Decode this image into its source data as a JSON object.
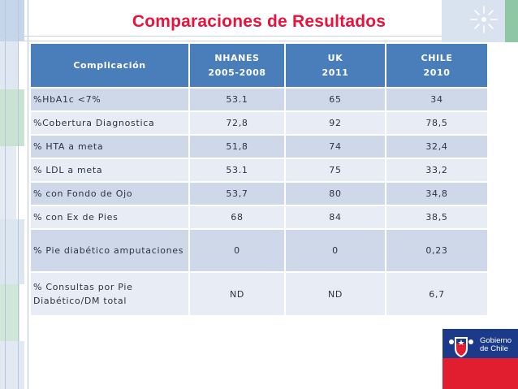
{
  "slide": {
    "title": "Comparaciones de Resultados"
  },
  "table": {
    "headers": [
      {
        "line1": "Complicación",
        "line2": ""
      },
      {
        "line1": "NHANES",
        "line2": "2005-2008"
      },
      {
        "line1": "UK",
        "line2": "2011"
      },
      {
        "line1": "CHILE",
        "line2": "2010"
      }
    ],
    "rows": [
      {
        "label": "%HbA1c <7%",
        "nhanes": "53.1",
        "uk": "65",
        "chile": "34"
      },
      {
        "label": "%Cobertura Diagnostica",
        "nhanes": "72,8",
        "uk": "92",
        "chile": "78,5"
      },
      {
        "label": "% HTA a meta",
        "nhanes": "51,8",
        "uk": "74",
        "chile": "32,4"
      },
      {
        "label": "% LDL a meta",
        "nhanes": "53.1",
        "uk": "75",
        "chile": "33,2"
      },
      {
        "label": "% con Fondo de Ojo",
        "nhanes": "53,7",
        "uk": "80",
        "chile": "34,8"
      },
      {
        "label": "% con Ex de Pies",
        "nhanes": "68",
        "uk": "84",
        "chile": "38,5"
      },
      {
        "label": "% Pie diabético amputaciones",
        "nhanes": "0",
        "uk": "0",
        "chile": "0,23"
      },
      {
        "label": "% Consultas por Pie Diabético/DM total",
        "nhanes": "ND",
        "uk": "ND",
        "chile": "6,7"
      }
    ]
  },
  "logo": {
    "text_line1": "Gobierno",
    "text_line2": "de Chile"
  },
  "colors": {
    "title": "#e8123c",
    "header_bg": "#4a7ebb",
    "row_odd": "#cfd8e8",
    "row_even": "#e8edf5"
  }
}
